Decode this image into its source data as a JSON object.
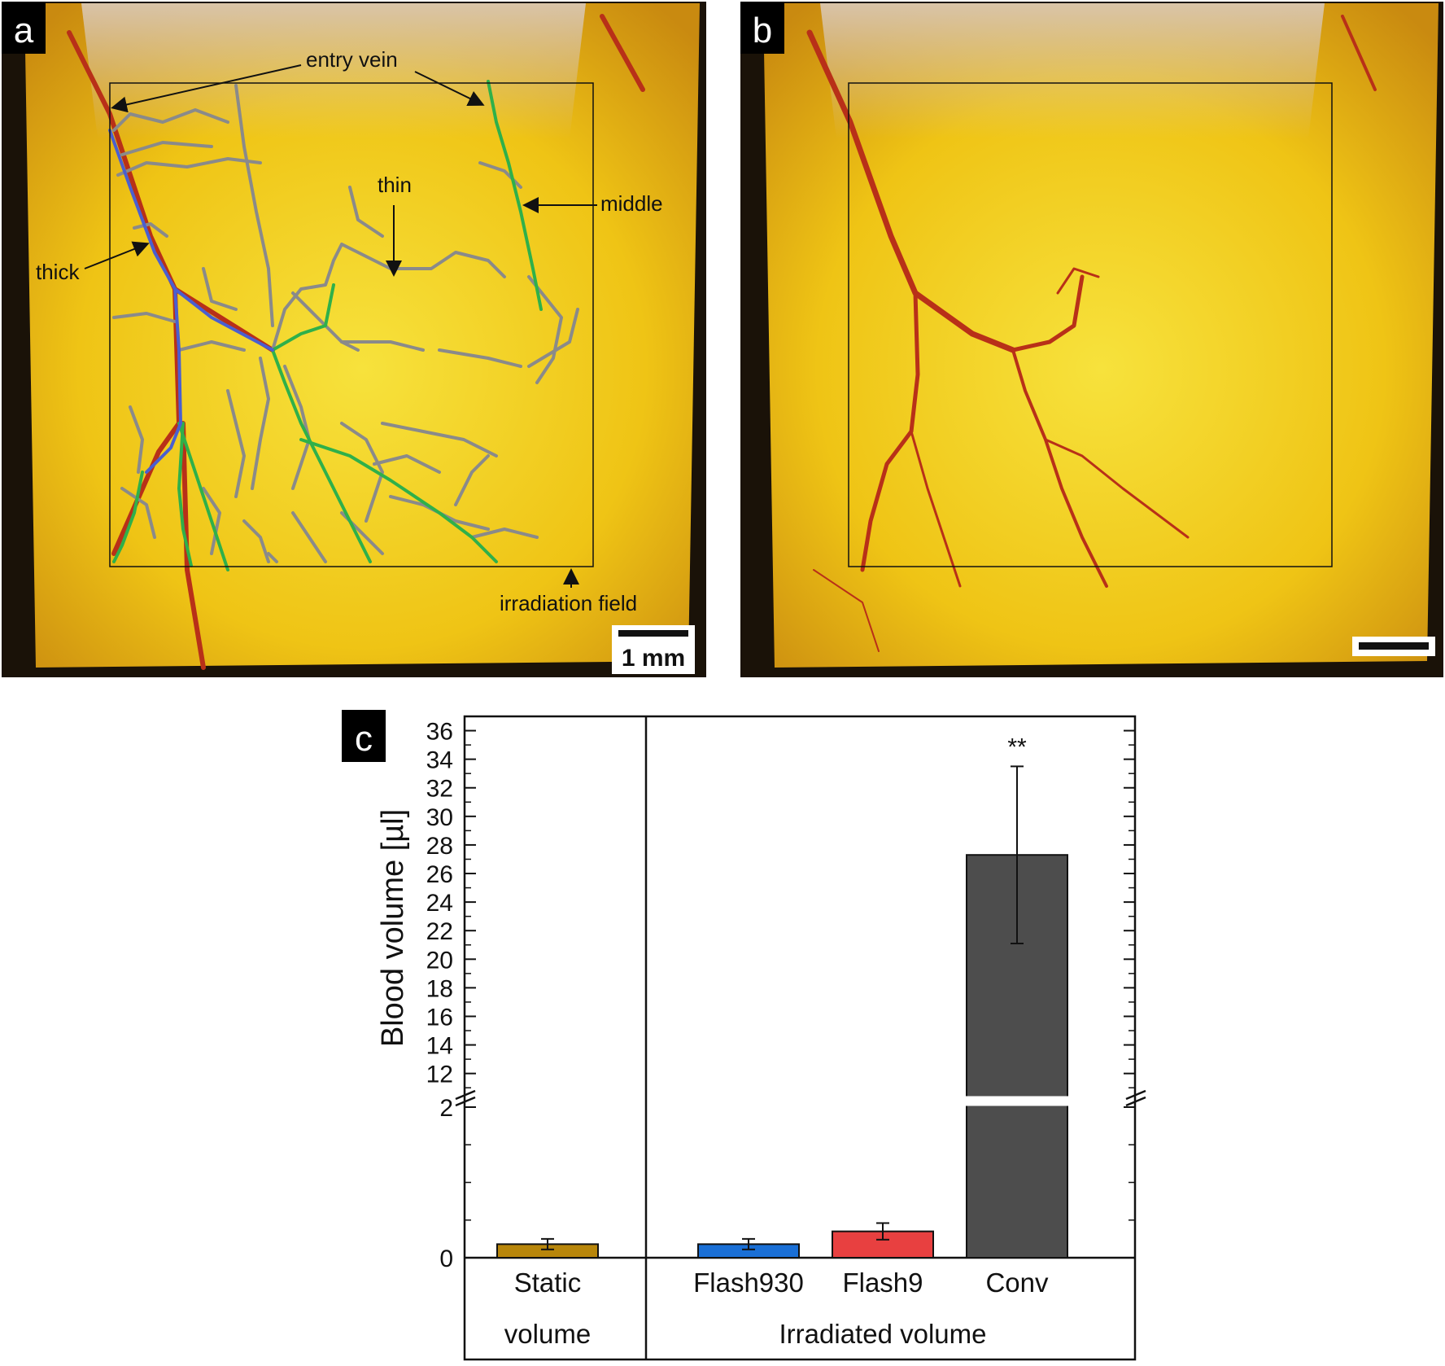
{
  "panels": {
    "a": {
      "letter": "a",
      "labels": {
        "entry_vein": "entry vein",
        "thin": "thin",
        "middle": "middle",
        "thick": "thick",
        "irradiation_field": "irradiation field"
      },
      "scale_bar": "1 mm"
    },
    "b": {
      "letter": "b"
    },
    "c": {
      "letter": "c"
    }
  },
  "colors": {
    "photo_yellow": "#f0c814",
    "vessel_gray": "#8a8a8a",
    "vessel_green": "#2fb04a",
    "vessel_blue": "#4a5fd0",
    "vessel_red": "#b83018",
    "bar_static": "#b8860b",
    "bar_flash930": "#1a6fd6",
    "bar_flash9": "#e84040",
    "bar_conv": "#4d4d4d"
  },
  "chart_data": {
    "type": "bar",
    "ylabel": "Blood volume [µl]",
    "axis_break": true,
    "y_lower_range": [
      0,
      2
    ],
    "y_upper_range": [
      10.5,
      37
    ],
    "y_lower_ticks": [
      "0",
      "2"
    ],
    "y_upper_ticks": [
      "12",
      "14",
      "16",
      "18",
      "20",
      "22",
      "24",
      "26",
      "28",
      "30",
      "32",
      "34",
      "36"
    ],
    "groups": [
      {
        "label_lines": [
          "Static",
          "volume"
        ],
        "categories": [
          "Static"
        ]
      },
      {
        "label": "Irradiated volume",
        "categories": [
          "Flash930",
          "Flash9",
          "Conv"
        ]
      }
    ],
    "categories": [
      "Static",
      "Flash930",
      "Flash9",
      "Conv"
    ],
    "values": [
      0.18,
      0.18,
      0.35,
      27.3
    ],
    "errors": [
      0.07,
      0.07,
      0.11,
      6.2
    ],
    "annotations": [
      {
        "category": "Conv",
        "text": "**"
      }
    ]
  }
}
